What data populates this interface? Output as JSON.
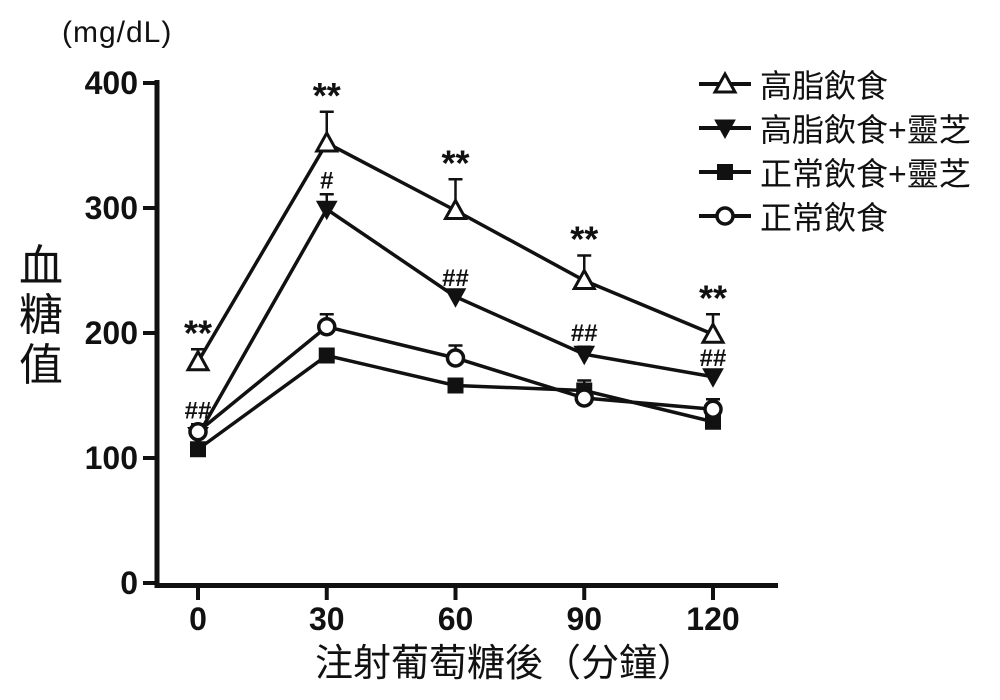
{
  "figure": {
    "unit_label": "(mg/dL)",
    "y_axis_title": "血糖值",
    "x_axis_title": "注射葡萄糖後（分鐘）"
  },
  "colors": {
    "ink": "#111111",
    "background": "#ffffff"
  },
  "chart_data": {
    "type": "line",
    "title": "",
    "xlabel": "注射葡萄糖後（分鐘）",
    "ylabel": "血糖值 (mg/dL)",
    "x": [
      0,
      30,
      60,
      90,
      120
    ],
    "x_tick_labels": [
      "0",
      "30",
      "60",
      "90",
      "120"
    ],
    "y_ticks": [
      0,
      100,
      200,
      300,
      400
    ],
    "y_tick_labels": [
      "0",
      "100",
      "200",
      "300",
      "400"
    ],
    "ylim": [
      0,
      400
    ],
    "grid": false,
    "legend_position": "top-right",
    "series": [
      {
        "name": "高脂飲食",
        "marker": "triangle-open",
        "values": [
          177,
          352,
          298,
          242,
          199
        ],
        "errors": [
          10,
          25,
          25,
          20,
          16
        ]
      },
      {
        "name": "高脂飲食+靈芝",
        "marker": "triangle-down-filled",
        "values": [
          118,
          299,
          229,
          183,
          165
        ],
        "errors": [
          4,
          12,
          4,
          6,
          4
        ]
      },
      {
        "name": "正常飲食+靈芝",
        "marker": "square-filled",
        "values": [
          107,
          182,
          158,
          154,
          129
        ],
        "errors": [
          4,
          5,
          3,
          8,
          4
        ]
      },
      {
        "name": "正常飲食",
        "marker": "circle-open",
        "values": [
          121,
          205,
          180,
          148,
          139
        ],
        "errors": [
          6,
          10,
          10,
          4,
          8
        ]
      }
    ],
    "annotations": [
      {
        "series": 0,
        "point": 0,
        "text": "**"
      },
      {
        "series": 0,
        "point": 1,
        "text": "**"
      },
      {
        "series": 0,
        "point": 2,
        "text": "**"
      },
      {
        "series": 0,
        "point": 3,
        "text": "**"
      },
      {
        "series": 0,
        "point": 4,
        "text": "**"
      },
      {
        "series": 1,
        "point": 1,
        "text": "#"
      },
      {
        "series": 1,
        "point": 2,
        "text": "##"
      },
      {
        "series": 1,
        "point": 3,
        "text": "##"
      },
      {
        "series": 1,
        "point": 4,
        "text": "##"
      },
      {
        "series": 3,
        "point": 0,
        "text": "##"
      }
    ]
  }
}
